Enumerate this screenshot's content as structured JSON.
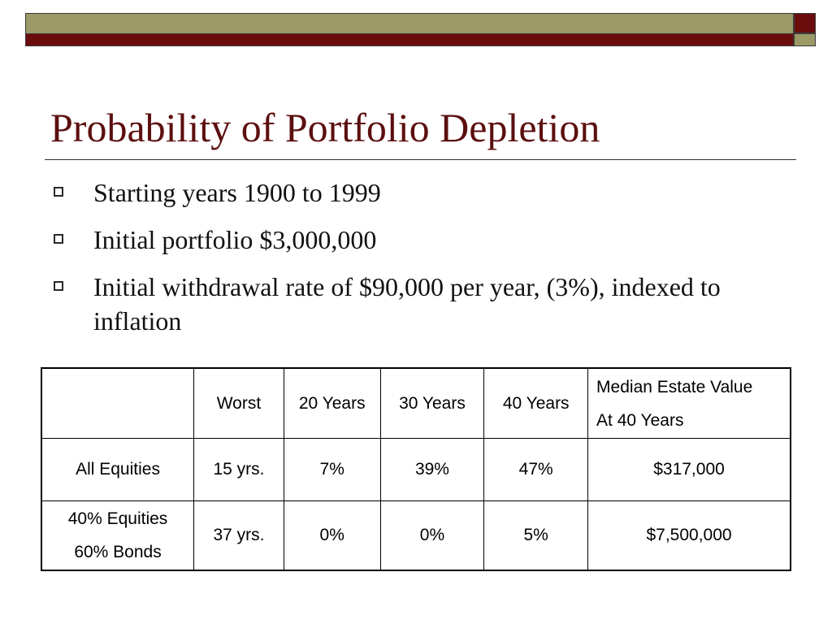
{
  "slide": {
    "title": "Probability of Portfolio Depletion",
    "bullets": [
      "Starting years 1900 to 1999",
      "Initial portfolio $3,000,000",
      "Initial withdrawal rate of $90,000 per year, (3%), indexed to inflation"
    ],
    "colors": {
      "title": "#5c0f0f",
      "olive_band": "#9c9a66",
      "maroon_band": "#6b0d0d"
    }
  },
  "table": {
    "headers": [
      "",
      "Worst",
      "20 Years",
      "30 Years",
      "40 Years",
      [
        "Median Estate Value",
        "At 40 Years"
      ]
    ],
    "rows": [
      {
        "label": [
          "All Equities"
        ],
        "cells": [
          "15 yrs.",
          "7%",
          "39%",
          "47%",
          "$317,000"
        ]
      },
      {
        "label": [
          "40% Equities",
          "60% Bonds"
        ],
        "cells": [
          "37 yrs.",
          "0%",
          "0%",
          "5%",
          "$7,500,000"
        ]
      }
    ]
  }
}
